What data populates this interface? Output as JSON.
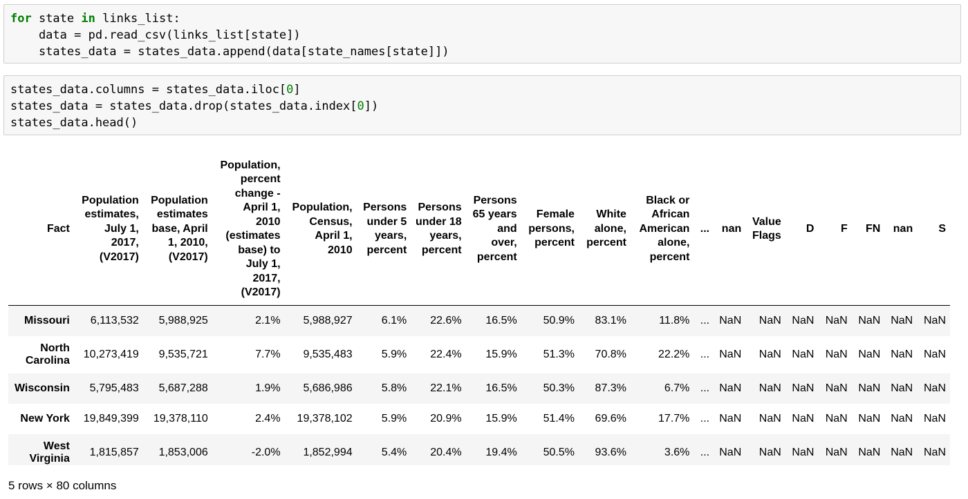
{
  "cells": [
    {
      "lines": [
        {
          "tokens": [
            {
              "t": "for",
              "k": "kw"
            },
            {
              "t": " state "
            },
            {
              "t": "in",
              "k": "kw"
            },
            {
              "t": " links_list:"
            }
          ]
        },
        {
          "tokens": [
            {
              "t": "    data = pd.read_csv(links_list[state])"
            }
          ]
        },
        {
          "tokens": [
            {
              "t": "    states_data = states_data.append(data[state_names[state]])"
            }
          ]
        }
      ]
    },
    {
      "lines": [
        {
          "tokens": [
            {
              "t": "states_data.columns = states_data.iloc["
            },
            {
              "t": "0",
              "k": "num"
            },
            {
              "t": "]"
            }
          ]
        },
        {
          "tokens": [
            {
              "t": "states_data = states_data.drop(states_data.index["
            },
            {
              "t": "0",
              "k": "num"
            },
            {
              "t": "])"
            }
          ]
        },
        {
          "tokens": [
            {
              "t": "states_data.head()"
            }
          ]
        }
      ]
    }
  ],
  "table": {
    "index_header": "Fact",
    "columns": [
      "Population estimates, July 1, 2017, (V2017)",
      "Population estimates base, April 1, 2010, (V2017)",
      "Population, percent change - April 1, 2010 (estimates base) to July 1, 2017, (V2017)",
      "Population, Census, April 1, 2010",
      "Persons under 5 years, percent",
      "Persons under 18 years, percent",
      "Persons 65 years and over, percent",
      "Female persons, percent",
      "White alone, percent",
      "Black or African American alone, percent",
      "...",
      "nan",
      "Value Flags",
      "D",
      "F",
      "FN",
      "nan",
      "S"
    ],
    "rows": [
      {
        "index": "Missouri",
        "values": [
          "6,113,532",
          "5,988,925",
          "2.1%",
          "5,988,927",
          "6.1%",
          "22.6%",
          "16.5%",
          "50.9%",
          "83.1%",
          "11.8%",
          "...",
          "NaN",
          "NaN",
          "NaN",
          "NaN",
          "NaN",
          "NaN",
          "NaN"
        ]
      },
      {
        "index": "North Carolina",
        "values": [
          "10,273,419",
          "9,535,721",
          "7.7%",
          "9,535,483",
          "5.9%",
          "22.4%",
          "15.9%",
          "51.3%",
          "70.8%",
          "22.2%",
          "...",
          "NaN",
          "NaN",
          "NaN",
          "NaN",
          "NaN",
          "NaN",
          "NaN"
        ]
      },
      {
        "index": "Wisconsin",
        "values": [
          "5,795,483",
          "5,687,288",
          "1.9%",
          "5,686,986",
          "5.8%",
          "22.1%",
          "16.5%",
          "50.3%",
          "87.3%",
          "6.7%",
          "...",
          "NaN",
          "NaN",
          "NaN",
          "NaN",
          "NaN",
          "NaN",
          "NaN"
        ]
      },
      {
        "index": "New York",
        "values": [
          "19,849,399",
          "19,378,110",
          "2.4%",
          "19,378,102",
          "5.9%",
          "20.9%",
          "15.9%",
          "51.4%",
          "69.6%",
          "17.7%",
          "...",
          "NaN",
          "NaN",
          "NaN",
          "NaN",
          "NaN",
          "NaN",
          "NaN"
        ]
      },
      {
        "index": "West Virginia",
        "values": [
          "1,815,857",
          "1,853,006",
          "-2.0%",
          "1,852,994",
          "5.4%",
          "20.4%",
          "19.4%",
          "50.5%",
          "93.6%",
          "3.6%",
          "...",
          "NaN",
          "NaN",
          "NaN",
          "NaN",
          "NaN",
          "NaN",
          "NaN"
        ]
      }
    ]
  },
  "footer": "5 rows × 80 columns"
}
